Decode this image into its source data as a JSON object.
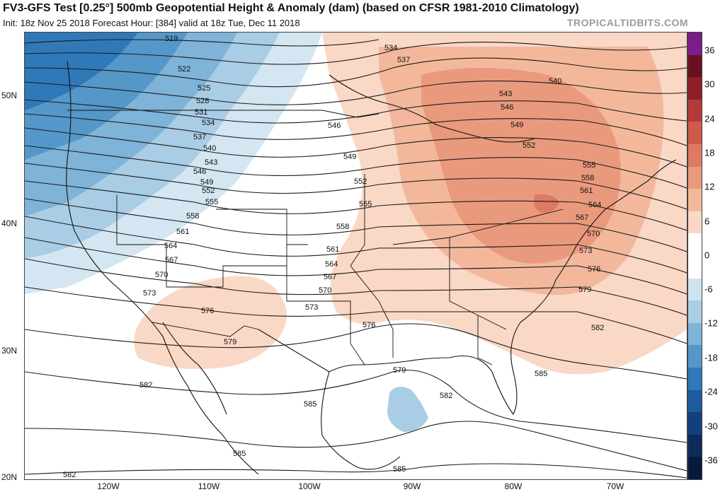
{
  "header": {
    "title": "FV3-GFS Test [0.25°] 500mb Geopotential Height & Anomaly (dam) (based on CFSR 1981-2010 Climatology)",
    "subtitle": "Init: 18z Nov 25 2018   Forecast Hour: [384]   valid at 18z Tue, Dec 11 2018",
    "brand": "TROPICALTIDBITS.COM"
  },
  "axes": {
    "lat_labels": [
      "50N",
      "40N",
      "30N",
      "20N"
    ],
    "lon_labels": [
      "120W",
      "110W",
      "100W",
      "90W",
      "80W",
      "70W"
    ]
  },
  "colorbar": {
    "labels": [
      "36",
      "30",
      "24",
      "18",
      "12",
      "6",
      "0",
      "-6",
      "-12",
      "-18",
      "-24",
      "-30",
      "-36"
    ],
    "colors": [
      "#7a1d8a",
      "#6a0f22",
      "#8e1f2b",
      "#b53a3a",
      "#cf5a4a",
      "#de7a62",
      "#ea9a7c",
      "#f3b89c",
      "#fad8c6",
      "#ffffff",
      "#ffffff",
      "#cfe3ef",
      "#a9cde4",
      "#7fb3d8",
      "#5597c9",
      "#2f79b8",
      "#1c5b9e",
      "#133f7f",
      "#0d2a5c",
      "#081a3c"
    ]
  },
  "contours": {
    "labels": [
      "519",
      "522",
      "525",
      "528",
      "531",
      "534",
      "537",
      "540",
      "543",
      "546",
      "549",
      "552",
      "555",
      "558",
      "561",
      "564",
      "567",
      "570",
      "573",
      "576",
      "579",
      "582",
      "585",
      "534",
      "537",
      "540",
      "543",
      "546",
      "549",
      "552",
      "555",
      "558",
      "561",
      "564",
      "567",
      "570",
      "573",
      "576",
      "579",
      "582",
      "585",
      "546",
      "549",
      "552",
      "555",
      "558",
      "561",
      "564",
      "567",
      "570",
      "573",
      "576",
      "579",
      "582",
      "585",
      "585",
      "582"
    ]
  }
}
